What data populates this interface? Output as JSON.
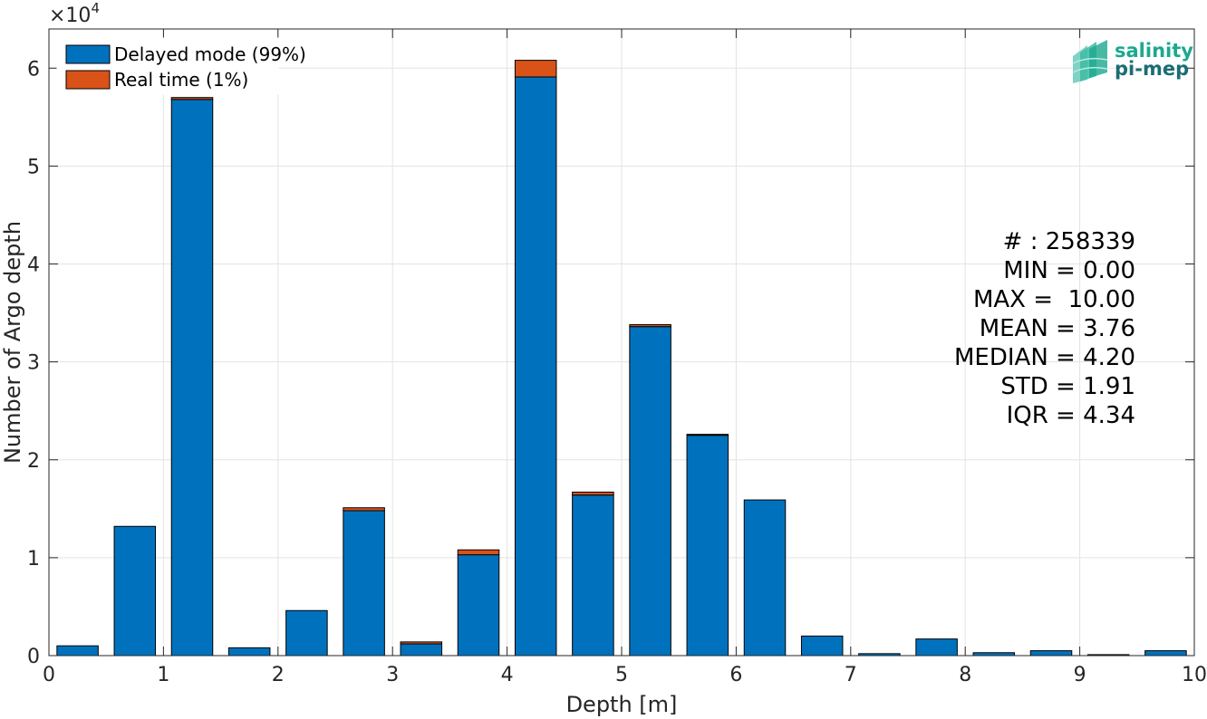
{
  "chart_data": {
    "type": "bar",
    "stacked": true,
    "xlabel": "Depth [m]",
    "ylabel": "Number of Argo depth",
    "exponent_label": "×10",
    "exponent_power": "4",
    "xlim": [
      0,
      10
    ],
    "ylim": [
      0,
      64000
    ],
    "xticks": [
      "0",
      "1",
      "2",
      "3",
      "4",
      "5",
      "6",
      "7",
      "8",
      "9",
      "10"
    ],
    "yticks": [
      "0",
      "1",
      "2",
      "3",
      "4",
      "5",
      "6"
    ],
    "grid": true,
    "legend_placement": "top-left",
    "bin_centers": [
      0.25,
      0.75,
      1.25,
      1.75,
      2.25,
      2.75,
      3.25,
      3.75,
      4.25,
      4.75,
      5.25,
      5.75,
      6.25,
      6.75,
      7.25,
      7.75,
      8.25,
      8.75,
      9.25,
      9.75
    ],
    "series": [
      {
        "name": "Delayed mode (99%)",
        "color": "#0072BD",
        "values": [
          1000,
          13200,
          56800,
          800,
          4600,
          14800,
          1200,
          10300,
          59100,
          16400,
          33600,
          22500,
          15900,
          2000,
          200,
          1700,
          300,
          500,
          100,
          500
        ]
      },
      {
        "name": "Real time (1%)",
        "color": "#D95319",
        "values": [
          0,
          0,
          200,
          0,
          0,
          300,
          200,
          500,
          1700,
          300,
          200,
          100,
          0,
          0,
          0,
          0,
          0,
          0,
          0,
          0
        ]
      }
    ]
  },
  "stats": [
    "# : 258339",
    "MIN = 0.00",
    "MAX =  10.00",
    "MEAN = 3.76",
    "MEDIAN = 4.20",
    "STD = 1.91",
    "IQR = 4.34"
  ],
  "logo": {
    "line1": "salinity",
    "line2": "pi-mep",
    "color1": "#1ca88f",
    "color2": "#1a6d73"
  }
}
